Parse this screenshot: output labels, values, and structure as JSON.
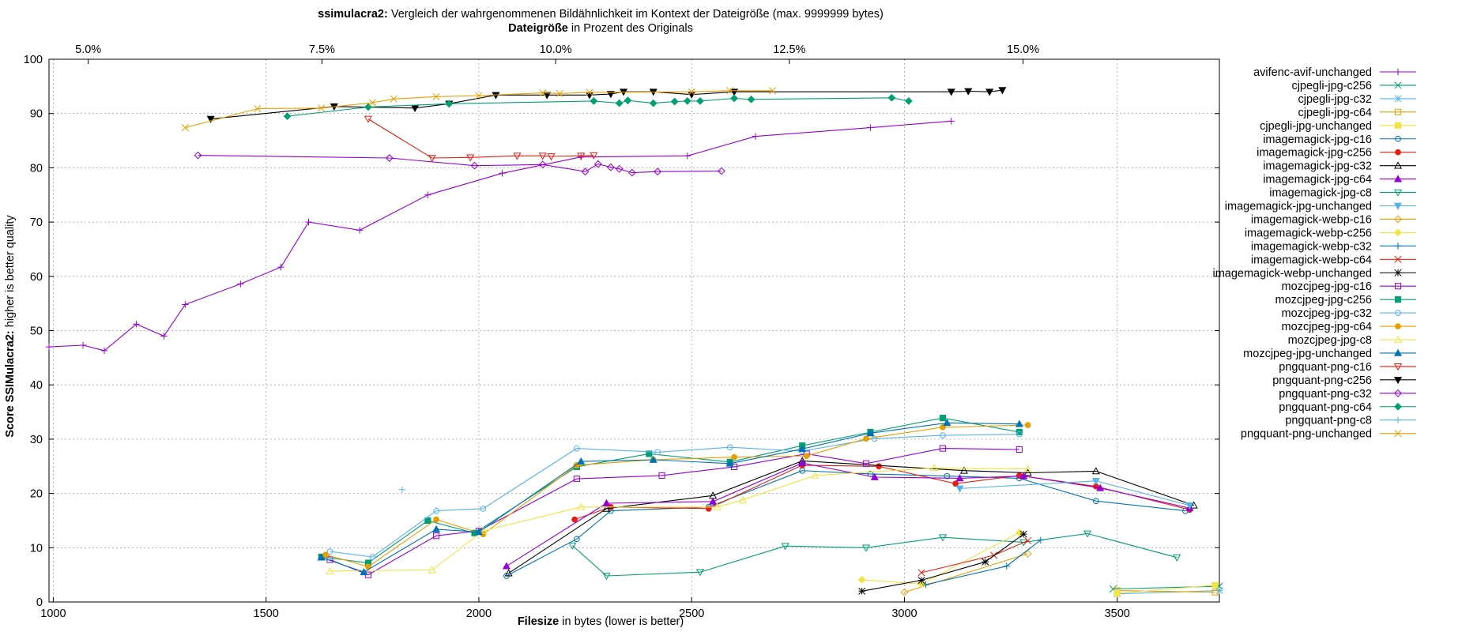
{
  "chart_data": {
    "type": "line",
    "title_bold": "ssimulacra2:",
    "title_rest": "Vergleich der wahrgenommenen Bildähnlichkeit im Kontext der Dateigröße (max. 9999999 bytes)",
    "x2label_bold": "Dateigröße",
    "x2label_rest": "in Prozent des Originals",
    "xlabel_bold": "Filesize",
    "xlabel_rest": "in bytes (lower is better)",
    "ylabel_bold": "Score SSIMulacra2:",
    "ylabel_rest": "higher is better quality",
    "xlim": [
      990,
      3740
    ],
    "ylim": [
      0,
      100
    ],
    "x2lim": [
      4.58,
      17.1
    ],
    "xticks": [
      1000,
      1500,
      2000,
      2500,
      3000,
      3500
    ],
    "yticks": [
      0,
      10,
      20,
      30,
      40,
      50,
      60,
      70,
      80,
      90,
      100
    ],
    "x2ticks": [
      {
        "value": 5.0,
        "label": "5.0%"
      },
      {
        "value": 7.5,
        "label": "7.5%"
      },
      {
        "value": 10.0,
        "label": "10.0%"
      },
      {
        "value": 12.5,
        "label": "12.5%"
      },
      {
        "value": 15.0,
        "label": "15.0%"
      }
    ],
    "grid": true,
    "legend_position": "top-right",
    "series": [
      {
        "name": "avifenc-avif-unchanged",
        "color": "#9400d3",
        "marker": "plus",
        "points": [
          [
            990,
            47
          ],
          [
            1070,
            47.3
          ],
          [
            1120,
            46.3
          ],
          [
            1195,
            51.2
          ],
          [
            1260,
            49
          ],
          [
            1310,
            54.8
          ],
          [
            1440,
            58.6
          ],
          [
            1535,
            61.7
          ],
          [
            1600,
            70
          ],
          [
            1720,
            68.5
          ],
          [
            1880,
            75
          ],
          [
            2055,
            79
          ],
          [
            2240,
            82
          ],
          [
            2490,
            82.2
          ],
          [
            2650,
            85.8
          ],
          [
            2920,
            87.4
          ],
          [
            3110,
            88.6
          ]
        ]
      },
      {
        "name": "cjpegli-jpg-c256",
        "color": "#009e73",
        "marker": "x",
        "points": [
          [
            3490,
            2.4
          ],
          [
            3740,
            2.9
          ]
        ]
      },
      {
        "name": "cjpegli-jpg-c32",
        "color": "#56b4e9",
        "marker": "star",
        "points": [
          [
            3500,
            1.5
          ],
          [
            3740,
            2.1
          ]
        ]
      },
      {
        "name": "cjpegli-jpg-c64",
        "color": "#e69f00",
        "marker": "square",
        "points": [
          [
            3500,
            2.1
          ],
          [
            3730,
            1.8
          ]
        ]
      },
      {
        "name": "cjpegli-jpg-unchanged",
        "color": "#f0e442",
        "marker": "fsquare",
        "points": [
          [
            3500,
            1.6
          ],
          [
            3730,
            3.1
          ]
        ]
      },
      {
        "name": "imagemagick-jpg-c16",
        "color": "#0072b2",
        "marker": "circle",
        "points": [
          [
            2065,
            4.8
          ],
          [
            2230,
            11.6
          ],
          [
            2310,
            16.8
          ],
          [
            2540,
            17.5
          ],
          [
            2760,
            24.2
          ],
          [
            2920,
            23.6
          ],
          [
            3100,
            23.2
          ],
          [
            3270,
            22.8
          ],
          [
            3450,
            18.6
          ],
          [
            3660,
            16.8
          ]
        ]
      },
      {
        "name": "imagemagick-jpg-c256",
        "color": "#e51e10",
        "marker": "fcircle",
        "points": [
          [
            2225,
            15.2
          ],
          [
            2310,
            17.5
          ],
          [
            2540,
            17.2
          ],
          [
            2760,
            25.2
          ],
          [
            2940,
            25
          ],
          [
            3120,
            21.8
          ],
          [
            3270,
            23.3
          ],
          [
            3450,
            21.3
          ],
          [
            3670,
            17
          ]
        ]
      },
      {
        "name": "imagemagick-jpg-c32",
        "color": "#000000",
        "marker": "triangle",
        "points": [
          [
            2070,
            5.3
          ],
          [
            2300,
            17.2
          ],
          [
            2550,
            19.6
          ],
          [
            2760,
            26
          ],
          [
            3140,
            24.2
          ],
          [
            3290,
            23.8
          ],
          [
            3450,
            24.1
          ],
          [
            3680,
            17.8
          ]
        ]
      },
      {
        "name": "imagemagick-jpg-c64",
        "color": "#9400d3",
        "marker": "ftriangle",
        "points": [
          [
            2065,
            6.6
          ],
          [
            2300,
            18.2
          ],
          [
            2550,
            18.5
          ],
          [
            2760,
            25.6
          ],
          [
            2930,
            23
          ],
          [
            3130,
            22.8
          ],
          [
            3280,
            23.2
          ],
          [
            3460,
            21
          ],
          [
            3670,
            17.3
          ]
        ]
      },
      {
        "name": "imagemagick-jpg-c8",
        "color": "#009e73",
        "marker": "itriangle",
        "points": [
          [
            2220,
            10.4
          ],
          [
            2300,
            4.8
          ],
          [
            2520,
            5.5
          ],
          [
            2720,
            10.3
          ],
          [
            2910,
            10
          ],
          [
            3090,
            11.9
          ],
          [
            3280,
            11
          ],
          [
            3430,
            12.6
          ],
          [
            3640,
            8.2
          ]
        ]
      },
      {
        "name": "imagemagick-jpg-unchanged",
        "color": "#56b4e9",
        "marker": "fitriangle",
        "points": [
          [
            3130,
            20.9
          ],
          [
            3450,
            22.3
          ],
          [
            3670,
            17.8
          ]
        ]
      },
      {
        "name": "imagemagick-webp-c16",
        "color": "#e69f00",
        "marker": "diamond",
        "points": [
          [
            3000,
            1.8
          ],
          [
            3290,
            8.9
          ]
        ]
      },
      {
        "name": "imagemagick-webp-c256",
        "color": "#f0e442",
        "marker": "fdiamond",
        "points": [
          [
            2900,
            4.1
          ],
          [
            3040,
            3.3
          ],
          [
            3270,
            12.8
          ]
        ]
      },
      {
        "name": "imagemagick-webp-c32",
        "color": "#0072b2",
        "marker": "plus",
        "points": [
          [
            3050,
            3.2
          ],
          [
            3240,
            6.6
          ],
          [
            3320,
            11.4
          ]
        ]
      },
      {
        "name": "imagemagick-webp-c64",
        "color": "#e51e10",
        "marker": "x",
        "points": [
          [
            3040,
            5.4
          ],
          [
            3210,
            8.6
          ],
          [
            3290,
            11.3
          ]
        ]
      },
      {
        "name": "imagemagick-webp-unchanged",
        "color": "#000000",
        "marker": "star",
        "points": [
          [
            2900,
            2
          ],
          [
            3040,
            4
          ],
          [
            3190,
            7.4
          ],
          [
            3280,
            12.5
          ]
        ]
      },
      {
        "name": "mozcjpeg-jpg-c16",
        "color": "#9400d3",
        "marker": "square",
        "points": [
          [
            1650,
            7.8
          ],
          [
            1740,
            5
          ],
          [
            1900,
            12.2
          ],
          [
            2000,
            13.1
          ],
          [
            2230,
            22.7
          ],
          [
            2430,
            23.3
          ],
          [
            2600,
            24.9
          ],
          [
            2770,
            27.3
          ],
          [
            2910,
            25.5
          ],
          [
            3090,
            28.3
          ],
          [
            3270,
            28.1
          ]
        ]
      },
      {
        "name": "mozcjpeg-jpg-c256",
        "color": "#009e73",
        "marker": "fsquare",
        "points": [
          [
            1630,
            8.3
          ],
          [
            1740,
            7.2
          ],
          [
            1880,
            15
          ],
          [
            1990,
            12.7
          ],
          [
            2230,
            24.9
          ],
          [
            2400,
            27.3
          ],
          [
            2590,
            25.8
          ],
          [
            2760,
            28.8
          ],
          [
            2920,
            31.3
          ],
          [
            3090,
            33.9
          ],
          [
            3270,
            31.3
          ]
        ]
      },
      {
        "name": "mozcjpeg-jpg-c32",
        "color": "#56b4e9",
        "marker": "circle",
        "points": [
          [
            1650,
            9.3
          ],
          [
            1750,
            8.3
          ],
          [
            1900,
            16.8
          ],
          [
            2010,
            17.2
          ],
          [
            2230,
            28.3
          ],
          [
            2420,
            27.6
          ],
          [
            2590,
            28.5
          ],
          [
            2760,
            27.8
          ],
          [
            2930,
            30.1
          ],
          [
            3090,
            30.7
          ],
          [
            3270,
            30.9
          ]
        ]
      },
      {
        "name": "mozcjpeg-jpg-c64",
        "color": "#e69f00",
        "marker": "fcircle",
        "points": [
          [
            1640,
            8.7
          ],
          [
            1740,
            6.5
          ],
          [
            1900,
            15.2
          ],
          [
            2010,
            12.5
          ],
          [
            2230,
            25.2
          ],
          [
            2410,
            26.2
          ],
          [
            2600,
            26.7
          ],
          [
            2770,
            26.9
          ],
          [
            2910,
            30.1
          ],
          [
            3090,
            32.2
          ],
          [
            3290,
            32.6
          ]
        ]
      },
      {
        "name": "mozcjpeg-jpg-c8",
        "color": "#f0e442",
        "marker": "triangle",
        "points": [
          [
            1650,
            5.7
          ],
          [
            1890,
            5.9
          ],
          [
            2010,
            13.1
          ],
          [
            2240,
            17.5
          ],
          [
            2560,
            17.5
          ],
          [
            2620,
            18.8
          ],
          [
            2790,
            23.3
          ],
          [
            3070,
            24.7
          ],
          [
            3290,
            24.5
          ]
        ]
      },
      {
        "name": "mozcjpeg-jpg-unchanged",
        "color": "#0072b2",
        "marker": "ftriangle",
        "points": [
          [
            1630,
            8.2
          ],
          [
            1730,
            5.5
          ],
          [
            1900,
            13.4
          ],
          [
            2000,
            12.9
          ],
          [
            2240,
            25.9
          ],
          [
            2410,
            26.2
          ],
          [
            2590,
            25.5
          ],
          [
            2760,
            28.2
          ],
          [
            2920,
            31.1
          ],
          [
            3100,
            33
          ],
          [
            3270,
            32.8
          ]
        ]
      },
      {
        "name": "pngquant-png-c16",
        "color": "#e51e10",
        "marker": "itriangle",
        "points": [
          [
            1740,
            89
          ],
          [
            1890,
            81.8
          ],
          [
            1980,
            81.9
          ],
          [
            2090,
            82.2
          ],
          [
            2150,
            82.2
          ],
          [
            2170,
            82.1
          ],
          [
            2240,
            82.2
          ],
          [
            2270,
            82.3
          ]
        ]
      },
      {
        "name": "pngquant-png-c256",
        "color": "#000000",
        "marker": "fitriangle",
        "points": [
          [
            1370,
            89
          ],
          [
            1660,
            91.3
          ],
          [
            1850,
            91
          ],
          [
            1930,
            91.8
          ],
          [
            2040,
            93.4
          ],
          [
            2160,
            93.4
          ],
          [
            2260,
            93.4
          ],
          [
            2310,
            93.6
          ],
          [
            2340,
            94
          ],
          [
            2410,
            94
          ],
          [
            2500,
            93.5
          ],
          [
            2600,
            94
          ],
          [
            3110,
            94
          ],
          [
            3150,
            94.1
          ],
          [
            3200,
            94
          ],
          [
            3230,
            94.3
          ]
        ]
      },
      {
        "name": "pngquant-png-c32",
        "color": "#9400d3",
        "marker": "diamond",
        "points": [
          [
            1340,
            82.3
          ],
          [
            1790,
            81.8
          ],
          [
            1990,
            80.4
          ],
          [
            2150,
            80.6
          ],
          [
            2250,
            79.3
          ],
          [
            2280,
            80.7
          ],
          [
            2310,
            80.1
          ],
          [
            2330,
            79.8
          ],
          [
            2360,
            79.1
          ],
          [
            2420,
            79.3
          ],
          [
            2570,
            79.4
          ]
        ]
      },
      {
        "name": "pngquant-png-c64",
        "color": "#009e73",
        "marker": "fdiamond",
        "points": [
          [
            1550,
            89.5
          ],
          [
            1740,
            91.2
          ],
          [
            1930,
            91.8
          ],
          [
            2270,
            92.3
          ],
          [
            2330,
            91.9
          ],
          [
            2350,
            92.4
          ],
          [
            2410,
            91.9
          ],
          [
            2460,
            92.2
          ],
          [
            2490,
            92.3
          ],
          [
            2520,
            92.3
          ],
          [
            2600,
            92.8
          ],
          [
            2640,
            92.6
          ],
          [
            2970,
            92.9
          ],
          [
            3010,
            92.3
          ]
        ]
      },
      {
        "name": "pngquant-png-c8",
        "color": "#56b4e9",
        "marker": "plus",
        "points": [
          [
            1820,
            20.7
          ]
        ]
      },
      {
        "name": "pngquant-png-unchanged",
        "color": "#e69f00",
        "marker": "x",
        "points": [
          [
            1310,
            87.4
          ],
          [
            1480,
            90.9
          ],
          [
            1630,
            91
          ],
          [
            1750,
            92
          ],
          [
            1800,
            92.7
          ],
          [
            1900,
            93.1
          ],
          [
            2000,
            93.3
          ],
          [
            2150,
            93.8
          ],
          [
            2190,
            93.7
          ],
          [
            2260,
            93.9
          ],
          [
            2500,
            94
          ],
          [
            2590,
            94.2
          ],
          [
            2690,
            94.2
          ]
        ]
      }
    ]
  }
}
